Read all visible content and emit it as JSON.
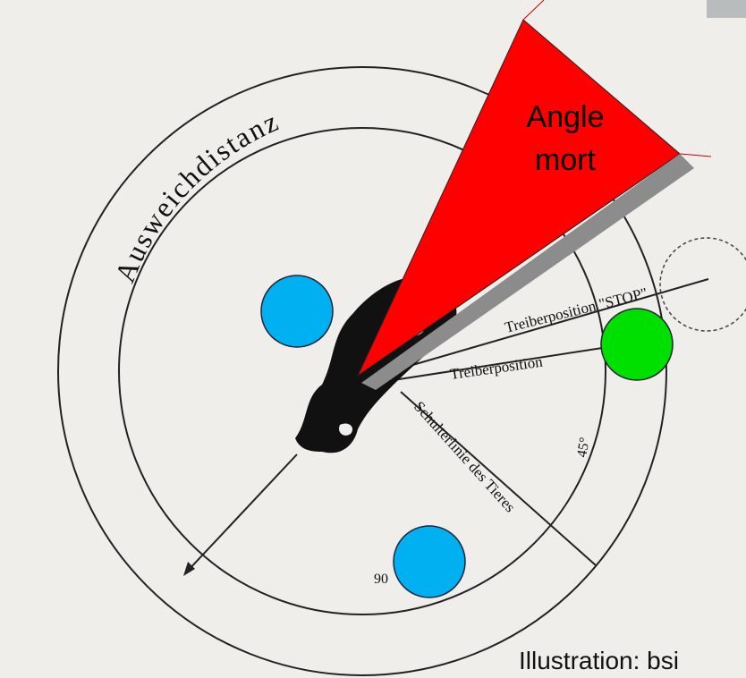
{
  "distance_label": "Ausweichdistanz",
  "blind_spot": [
    "Angle",
    "mort"
  ],
  "driver_stop": "Treiberposition \"STOP\"",
  "driver": "Treiberposition",
  "shoulder_line": "Schulterlinie des Tieres",
  "angle_45": "45°",
  "angle_90": "90",
  "credit": "Illustration: bsi"
}
